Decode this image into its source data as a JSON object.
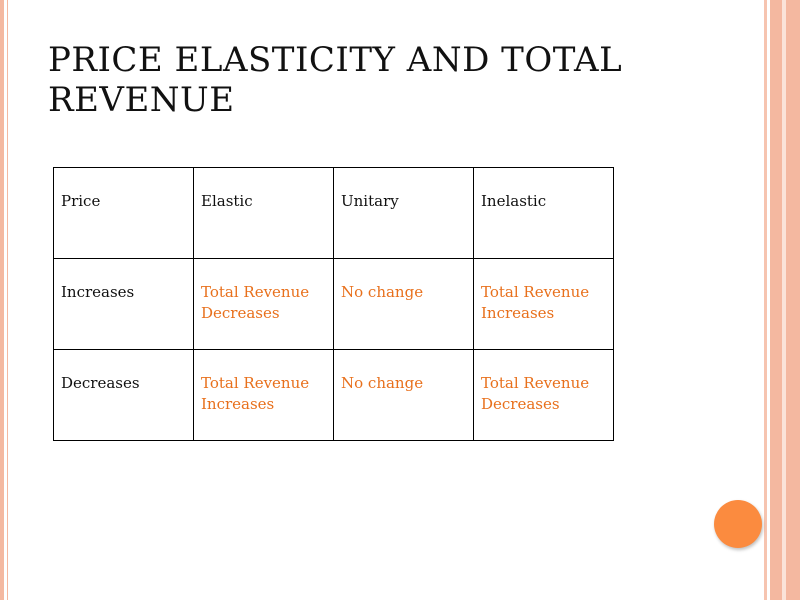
{
  "slide": {
    "title": "PRICE ELASTICITY AND TOTAL REVENUE",
    "accent_color": "#fb8b3f",
    "value_text_color": "#e8701c",
    "stripe_color": "#f4b8a0"
  },
  "table": {
    "headers": [
      "Price",
      "Elastic",
      "Unitary",
      "Inelastic"
    ],
    "rows": [
      {
        "label": "Increases",
        "elastic": "Total Revenue Decreases",
        "unitary": "No change",
        "inelastic": "Total Revenue Increases"
      },
      {
        "label": "Decreases",
        "elastic": "Total Revenue Increases",
        "unitary": "No change",
        "inelastic": "Total Revenue Decreases"
      }
    ]
  }
}
